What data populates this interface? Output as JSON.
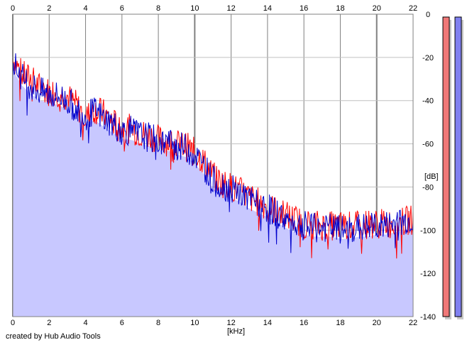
{
  "app": {
    "credit": "created by Hub Audio Tools"
  },
  "chart_data": {
    "type": "line",
    "title": "",
    "xlabel": "[kHz]",
    "ylabel": "[dB]",
    "xlim": [
      0,
      22
    ],
    "ylim": [
      -140,
      0
    ],
    "x_ticks": [
      0,
      2,
      4,
      6,
      8,
      10,
      12,
      14,
      16,
      18,
      20,
      22
    ],
    "y_ticks": [
      0,
      -20,
      -40,
      -60,
      -80,
      -100,
      -120,
      -140
    ],
    "grid": true,
    "x": [
      0,
      0.5,
      1,
      1.5,
      2,
      2.5,
      3,
      3.5,
      4,
      4.5,
      5,
      5.5,
      6,
      6.5,
      7,
      7.5,
      8,
      8.5,
      9,
      9.5,
      10,
      10.5,
      11,
      11.5,
      12,
      12.5,
      13,
      13.5,
      14,
      14.5,
      15,
      15.5,
      16,
      16.5,
      17,
      17.5,
      18,
      18.5,
      19,
      19.5,
      20,
      20.5,
      21,
      21.5,
      22
    ],
    "series": [
      {
        "color": "#ff0000",
        "values": [
          -20,
          -28,
          -30,
          -34,
          -36,
          -36,
          -38,
          -42,
          -48,
          -44,
          -46,
          -50,
          -53,
          -53,
          -55,
          -56,
          -58,
          -59,
          -60,
          -61,
          -64,
          -68,
          -75,
          -78,
          -80,
          -82,
          -85,
          -87,
          -89,
          -91,
          -93,
          -95,
          -97,
          -97,
          -98,
          -98,
          -98,
          -98,
          -98,
          -97,
          -97,
          -97,
          -97,
          -96,
          -95
        ]
      },
      {
        "color": "#0000cc",
        "values": [
          -22,
          -29,
          -33,
          -36,
          -37,
          -38,
          -40,
          -44,
          -47,
          -45,
          -48,
          -51,
          -54,
          -54,
          -56,
          -57,
          -59,
          -59,
          -61,
          -62,
          -65,
          -70,
          -77,
          -79,
          -81,
          -83,
          -86,
          -88,
          -90,
          -92,
          -95,
          -97,
          -98,
          -99,
          -99,
          -99,
          -100,
          -100,
          -99,
          -99,
          -98,
          -98,
          -97,
          -96,
          -95
        ]
      }
    ],
    "fill_color": "#c8c8ff",
    "meters": [
      {
        "color": "#f07878",
        "level": 1.0
      },
      {
        "color": "#8080f0",
        "level": 1.0
      }
    ]
  }
}
